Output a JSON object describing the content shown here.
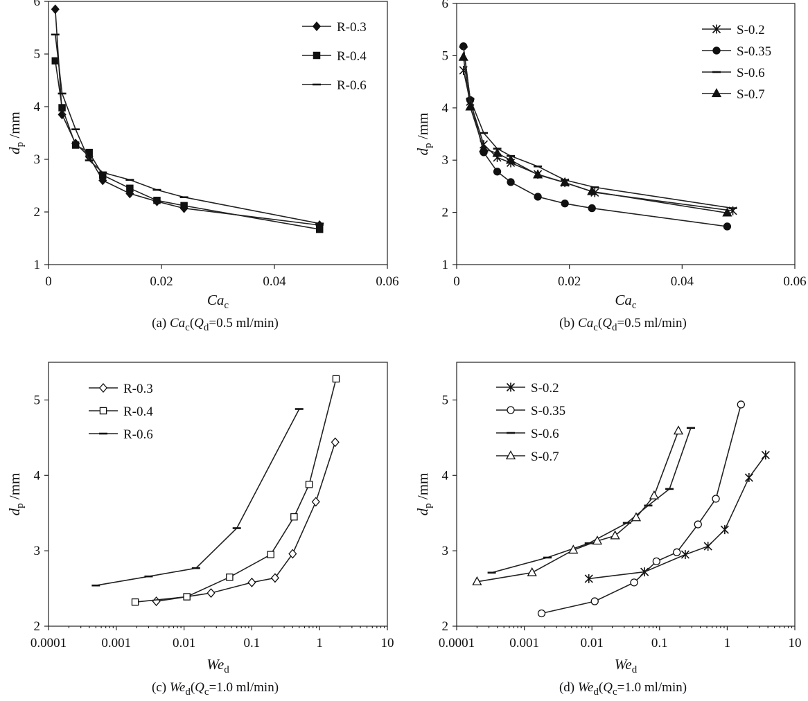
{
  "chart_data": [
    {
      "type": "line",
      "panel": "a",
      "xscale": "linear",
      "xlim": [
        0,
        0.06
      ],
      "ylim": [
        1,
        6
      ],
      "xticks": [
        0,
        0.02,
        0.04,
        0.06
      ],
      "xtick_labels": [
        "0",
        "0.02",
        "0.04",
        "0.06"
      ],
      "yticks": [
        1,
        2,
        3,
        4,
        5,
        6
      ],
      "ytick_labels": [
        "1",
        "2",
        "3",
        "4",
        "5",
        "6"
      ],
      "xlabel_main": "Ca",
      "xlabel_sub": "c",
      "ylabel_main": "d",
      "ylabel_sub": "p",
      "ylabel_unit": " /mm",
      "caption": {
        "prefix": "(a) ",
        "v": "Ca",
        "vsub": "c",
        "open": "(",
        "q": "Q",
        "qsub": "d",
        "rest": "=0.5 ml/min)"
      },
      "legend_position": "top-right",
      "series": [
        {
          "name": "R-0.3",
          "marker": "diamond-filled",
          "x": [
            0.0012,
            0.0024,
            0.0048,
            0.0072,
            0.0096,
            0.0144,
            0.0192,
            0.024,
            0.048
          ],
          "y": [
            5.85,
            3.85,
            3.3,
            3.05,
            2.6,
            2.35,
            2.2,
            2.07,
            1.75
          ]
        },
        {
          "name": "R-0.4",
          "marker": "square-filled",
          "x": [
            0.0012,
            0.0024,
            0.0048,
            0.0072,
            0.0096,
            0.0144,
            0.0192,
            0.024,
            0.048
          ],
          "y": [
            4.87,
            3.98,
            3.27,
            3.13,
            2.7,
            2.45,
            2.22,
            2.12,
            1.67
          ]
        },
        {
          "name": "R-0.6",
          "marker": "dash",
          "x": [
            0.0012,
            0.0024,
            0.0048,
            0.0072,
            0.0096,
            0.0144,
            0.0192,
            0.024,
            0.048
          ],
          "y": [
            5.37,
            4.25,
            3.57,
            2.98,
            2.75,
            2.61,
            2.42,
            2.28,
            1.78
          ]
        }
      ]
    },
    {
      "type": "line",
      "panel": "b",
      "xscale": "linear",
      "xlim": [
        0,
        0.06
      ],
      "ylim": [
        1,
        6
      ],
      "xticks": [
        0,
        0.02,
        0.04,
        0.06
      ],
      "xtick_labels": [
        "0",
        "0.02",
        "0.04",
        "0.06"
      ],
      "yticks": [
        1,
        2,
        3,
        4,
        5,
        6
      ],
      "ytick_labels": [
        "1",
        "2",
        "3",
        "4",
        "5",
        "6"
      ],
      "xlabel_main": "Ca",
      "xlabel_sub": "c",
      "ylabel_main": "d",
      "ylabel_sub": "p",
      "ylabel_unit": " /mm",
      "caption": {
        "prefix": "(b) ",
        "v": "Ca",
        "vsub": "c",
        "open": "(",
        "q": "Q",
        "qsub": "d",
        "rest": "=0.5 ml/min)"
      },
      "legend_position": "top-right",
      "series": [
        {
          "name": "S-0.2",
          "marker": "star",
          "x": [
            0.0012,
            0.0024,
            0.0048,
            0.0072,
            0.0096,
            0.0144,
            0.0192,
            0.0245,
            0.049
          ],
          "y": [
            4.72,
            4.12,
            3.3,
            3.05,
            2.95,
            2.73,
            2.57,
            2.38,
            2.03
          ]
        },
        {
          "name": "S-0.35",
          "marker": "circle-filled",
          "x": [
            0.0012,
            0.0024,
            0.0048,
            0.0072,
            0.0096,
            0.0144,
            0.0192,
            0.024,
            0.048
          ],
          "y": [
            5.18,
            4.15,
            3.15,
            2.78,
            2.58,
            2.3,
            2.17,
            2.08,
            1.73
          ]
        },
        {
          "name": "S-0.6",
          "marker": "dash",
          "x": [
            0.0012,
            0.0024,
            0.0048,
            0.0072,
            0.0096,
            0.0144,
            0.0192,
            0.0245,
            0.049
          ],
          "y": [
            5.17,
            4.17,
            3.52,
            3.22,
            3.08,
            2.88,
            2.62,
            2.48,
            2.08
          ]
        },
        {
          "name": "S-0.7",
          "marker": "triangle-filled",
          "x": [
            0.0012,
            0.0024,
            0.0048,
            0.0072,
            0.0096,
            0.0144,
            0.0192,
            0.024,
            0.048
          ],
          "y": [
            4.97,
            4.02,
            3.22,
            3.13,
            3.0,
            2.72,
            2.57,
            2.4,
            1.99
          ]
        }
      ]
    },
    {
      "type": "line",
      "panel": "c",
      "xscale": "log",
      "xlim": [
        0.0001,
        10
      ],
      "ylim": [
        2,
        5.5
      ],
      "xticks": [
        0.0001,
        0.001,
        0.01,
        0.1,
        1,
        10
      ],
      "xtick_labels": [
        "0.0001",
        "0.001",
        "0.01",
        "0.1",
        "1",
        "10"
      ],
      "yticks": [
        2,
        3,
        4,
        5
      ],
      "ytick_labels": [
        "2",
        "3",
        "4",
        "5"
      ],
      "xlabel_main": "We",
      "xlabel_sub": "d",
      "ylabel_main": "d",
      "ylabel_sub": "p",
      "ylabel_unit": " /mm",
      "caption": {
        "prefix": "(c) ",
        "v": "We",
        "vsub": "d",
        "open": "(",
        "q": "Q",
        "qsub": "c",
        "rest": "=1.0 ml/min)"
      },
      "legend_position": "top-left",
      "series": [
        {
          "name": "R-0.3",
          "marker": "diamond-open",
          "x": [
            0.0039,
            0.025,
            0.1,
            0.22,
            0.4,
            0.88,
            1.7
          ],
          "y": [
            2.33,
            2.44,
            2.58,
            2.64,
            2.96,
            3.65,
            4.44
          ]
        },
        {
          "name": "R-0.4",
          "marker": "square-open",
          "x": [
            0.0019,
            0.011,
            0.047,
            0.19,
            0.42,
            0.7,
            1.75
          ],
          "y": [
            2.32,
            2.39,
            2.65,
            2.95,
            3.45,
            3.88,
            5.28
          ]
        },
        {
          "name": "R-0.6",
          "marker": "dash",
          "x": [
            0.0005,
            0.003,
            0.015,
            0.06,
            0.5
          ],
          "y": [
            2.54,
            2.66,
            2.77,
            3.3,
            4.88
          ]
        }
      ]
    },
    {
      "type": "line",
      "panel": "d",
      "xscale": "log",
      "xlim": [
        0.0001,
        10
      ],
      "ylim": [
        2,
        5.5
      ],
      "xticks": [
        0.0001,
        0.001,
        0.01,
        0.1,
        1,
        10
      ],
      "xtick_labels": [
        "0.0001",
        "0.001",
        "0.01",
        "0.1",
        "1",
        "10"
      ],
      "yticks": [
        2,
        3,
        4,
        5
      ],
      "ytick_labels": [
        "2",
        "3",
        "4",
        "5"
      ],
      "xlabel_main": "We",
      "xlabel_sub": "d",
      "ylabel_main": "d",
      "ylabel_sub": "p",
      "ylabel_unit": " /mm",
      "caption": {
        "prefix": "(d) ",
        "v": "We",
        "vsub": "d",
        "open": "(",
        "q": "Q",
        "qsub": "c",
        "rest": "=1.0 ml/min)"
      },
      "legend_position": "top-left",
      "series": [
        {
          "name": "S-0.2",
          "marker": "star",
          "x": [
            0.009,
            0.06,
            0.24,
            0.52,
            0.92,
            2.1,
            3.7
          ],
          "y": [
            2.63,
            2.72,
            2.95,
            3.06,
            3.28,
            3.97,
            4.27
          ]
        },
        {
          "name": "S-0.35",
          "marker": "circle-open",
          "x": [
            0.0018,
            0.011,
            0.042,
            0.09,
            0.18,
            0.37,
            0.68,
            1.6
          ],
          "y": [
            2.17,
            2.33,
            2.58,
            2.86,
            2.98,
            3.35,
            3.69,
            4.94
          ]
        },
        {
          "name": "S-0.6",
          "marker": "dash",
          "x": [
            0.00033,
            0.0022,
            0.009,
            0.033,
            0.068,
            0.14,
            0.29
          ],
          "y": [
            2.71,
            2.91,
            3.1,
            3.37,
            3.6,
            3.82,
            4.63
          ]
        },
        {
          "name": "S-0.7",
          "marker": "triangle-open",
          "x": [
            0.0002,
            0.0013,
            0.0053,
            0.012,
            0.022,
            0.045,
            0.083,
            0.19
          ],
          "y": [
            2.59,
            2.71,
            3.01,
            3.13,
            3.2,
            3.44,
            3.73,
            4.59
          ]
        }
      ]
    }
  ]
}
